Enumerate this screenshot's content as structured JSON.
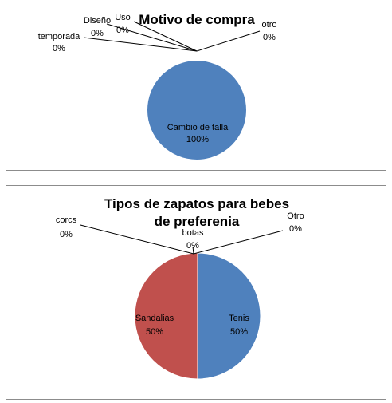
{
  "chart_data": [
    {
      "type": "pie",
      "title": "Motivo de compra",
      "legend": "none",
      "categories": [
        "Cambio de talla",
        "temporada",
        "Diseño",
        "Uso",
        "otro"
      ],
      "values": [
        100,
        0,
        0,
        0,
        0
      ],
      "value_labels": [
        "100%",
        "0%",
        "0%",
        "0%",
        "0%"
      ],
      "colors": [
        "#4f81bd",
        "#c0504d",
        "#9bbb59",
        "#8064a2",
        "#4bacc6"
      ]
    },
    {
      "type": "pie",
      "title": "Tipos de zapatos para bebes de preferenia",
      "title_lines": [
        "Tipos de zapatos para bebes",
        "de preferenia"
      ],
      "legend": "none",
      "categories": [
        "Tenis",
        "Sandalias",
        "corcs",
        "botas",
        "Otro"
      ],
      "values": [
        50,
        50,
        0,
        0,
        0
      ],
      "value_labels": [
        "50%",
        "50%",
        "0%",
        "0%",
        "0%"
      ],
      "colors": [
        "#4f81bd",
        "#c0504d",
        "#9bbb59",
        "#8064a2",
        "#4bacc6"
      ]
    }
  ]
}
